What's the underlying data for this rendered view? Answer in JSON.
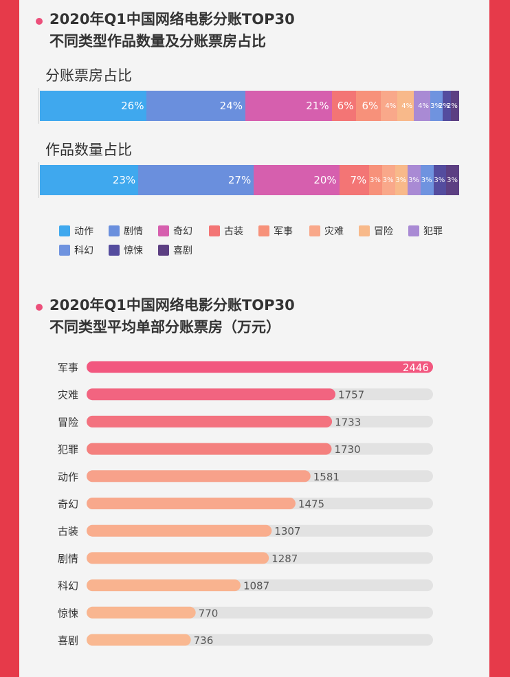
{
  "section1": {
    "title_line1": "2020年Q1中国网络电影分账TOP30",
    "title_line2": "不同类型作品数量及分账票房占比"
  },
  "section2": {
    "title_line1": "2020年Q1中国网络电影分账TOP30",
    "title_line2": "不同类型平均单部分账票房（万元）"
  },
  "colors": {
    "background": "#e63a4a",
    "panel": "#f4f4f4",
    "title_dot": "#ec4f7a",
    "bar_track": "#e2e2e2"
  },
  "chart_data": [
    {
      "type": "bar",
      "orientation": "horizontal-stacked-100",
      "categories": [
        "分账票房占比",
        "作品数量占比"
      ],
      "series": [
        {
          "name": "动作",
          "color": "#3fa8ee",
          "values": [
            26,
            23
          ]
        },
        {
          "name": "剧情",
          "color": "#6a8fdd",
          "values": [
            24,
            27
          ]
        },
        {
          "name": "奇幻",
          "color": "#d65fae",
          "values": [
            21,
            20
          ]
        },
        {
          "name": "古装",
          "color": "#f37575",
          "values": [
            6,
            7
          ]
        },
        {
          "name": "军事",
          "color": "#f7917a",
          "values": [
            6,
            3
          ]
        },
        {
          "name": "灾难",
          "color": "#f9a88a",
          "values": [
            4,
            3
          ]
        },
        {
          "name": "冒险",
          "color": "#f8b98a",
          "values": [
            4,
            3
          ]
        },
        {
          "name": "犯罪",
          "color": "#a98ad4",
          "values": [
            4,
            3
          ]
        },
        {
          "name": "科幻",
          "color": "#6f93df",
          "values": [
            3,
            3
          ]
        },
        {
          "name": "惊悚",
          "color": "#544c9e",
          "values": [
            2,
            3
          ]
        },
        {
          "name": "喜剧",
          "color": "#5c3f82",
          "values": [
            2,
            3
          ]
        }
      ],
      "value_labels": [
        [
          "26%",
          "24%",
          "21%",
          "6%",
          "6%",
          "4%",
          "4%",
          "4%",
          "3%",
          "2%",
          "2%"
        ],
        [
          "23%",
          "27%",
          "20%",
          "7%",
          "3%",
          "3%",
          "3%",
          "3%",
          "3%",
          "3%",
          "3%"
        ]
      ],
      "legend_position": "bottom"
    },
    {
      "type": "bar",
      "orientation": "horizontal",
      "categories": [
        "军事",
        "灾难",
        "冒险",
        "犯罪",
        "动作",
        "奇幻",
        "古装",
        "剧情",
        "科幻",
        "惊悚",
        "喜剧"
      ],
      "values": [
        2446,
        1757,
        1733,
        1730,
        1581,
        1475,
        1307,
        1287,
        1087,
        770,
        736
      ],
      "colors": [
        "#f2577f",
        "#f26480",
        "#f3727f",
        "#f4807e",
        "#f7a18a",
        "#f8a88c",
        "#f9ad8d",
        "#f9b08e",
        "#f9b38f",
        "#f9b690",
        "#f9b891"
      ],
      "xlim": [
        0,
        2446
      ]
    }
  ]
}
